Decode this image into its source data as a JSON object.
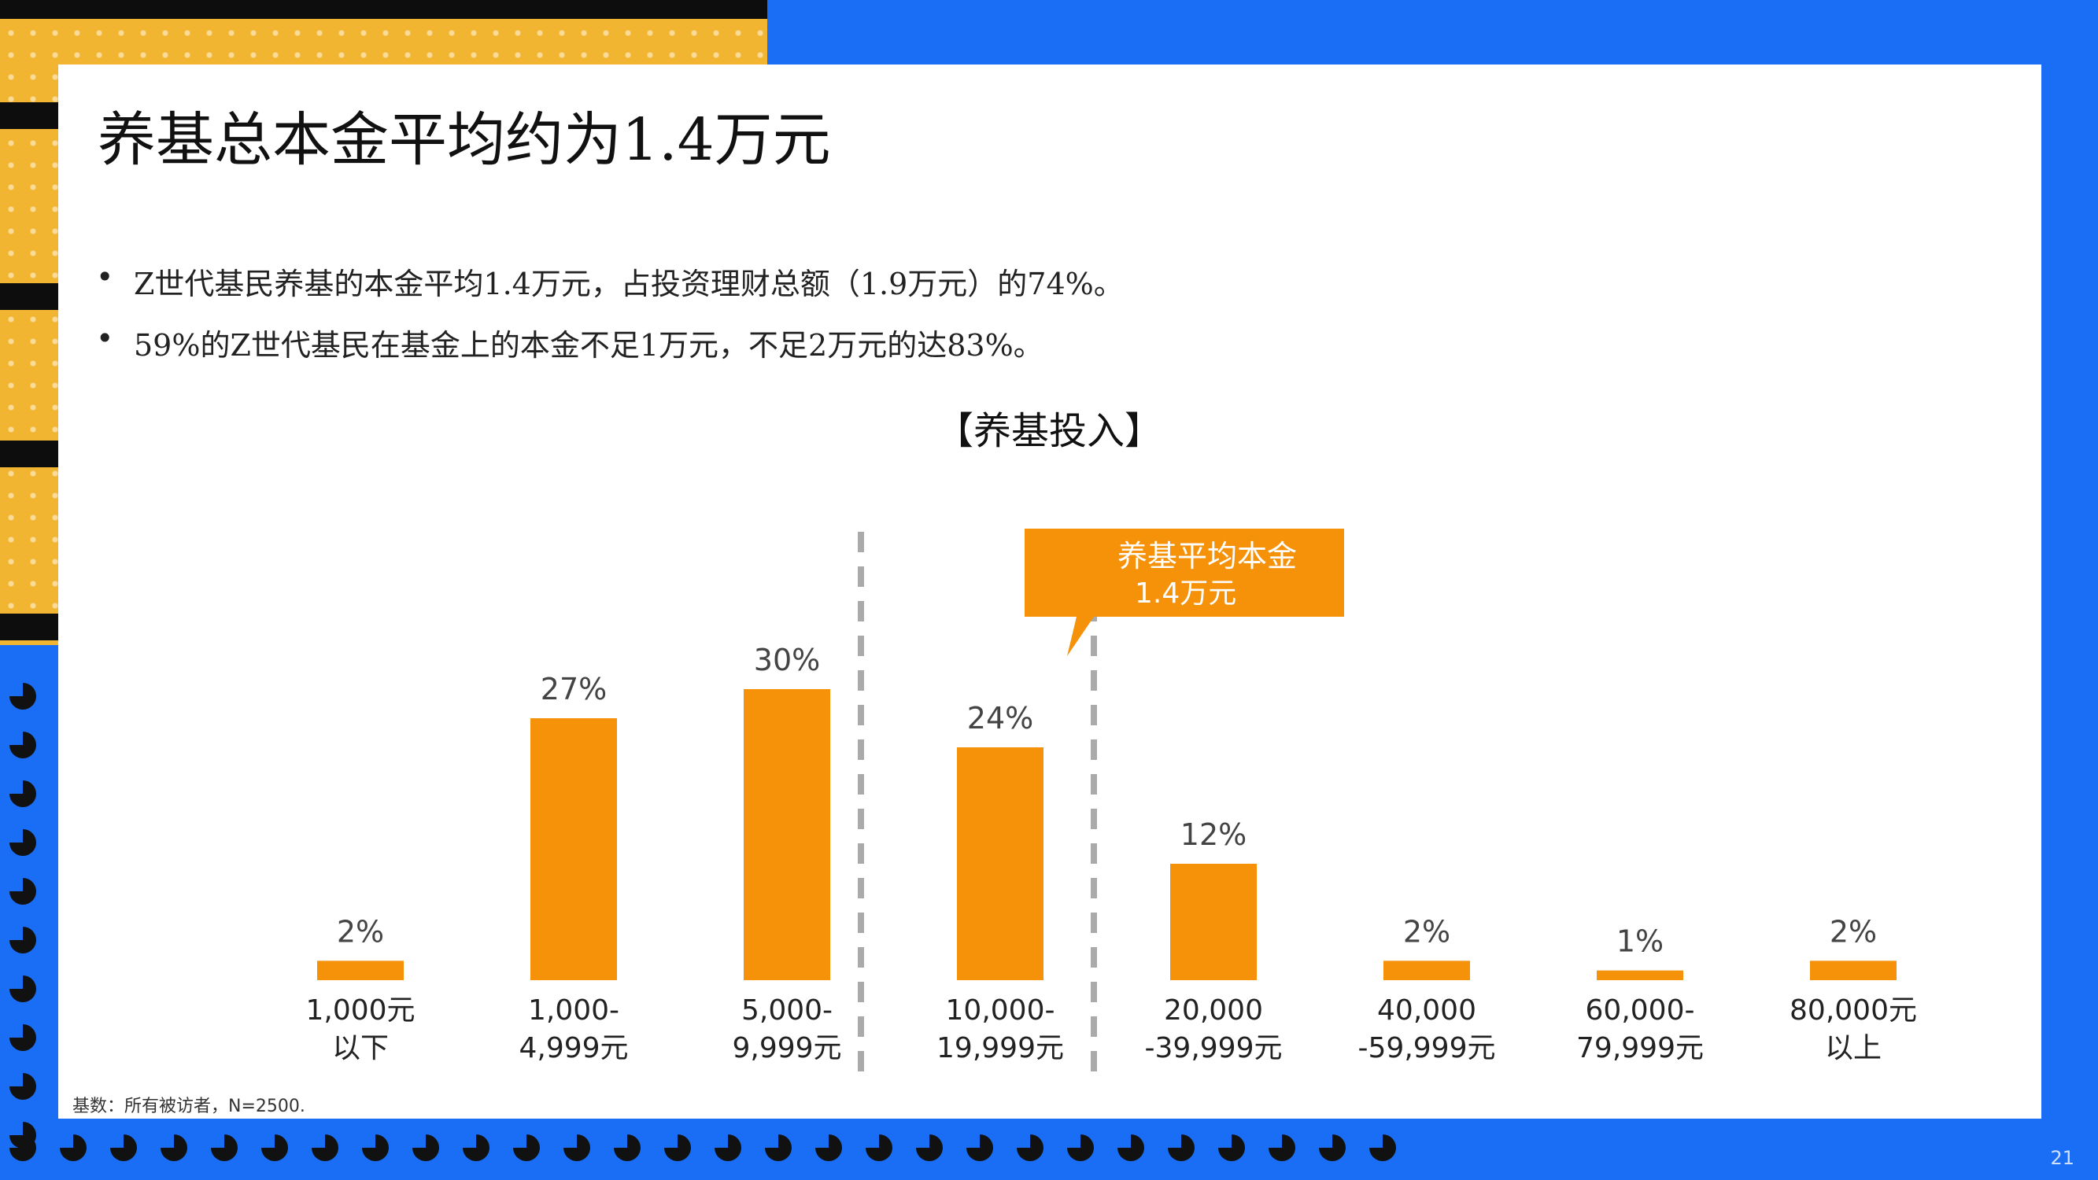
{
  "slide": {
    "title": "养基总本金平均约为1.4万元",
    "bullets": [
      "Z世代基民养基的本金平均1.4万元，占投资理财总额（1.9万元）的74%。",
      "59%的Z世代基民在基金上的本金不足1万元，不足2万元的达83%。"
    ],
    "basis_note": "基数：所有被访者，N=2500.",
    "page_number": "21"
  },
  "colors": {
    "bar": "#f5920a",
    "callout": "#f5920a",
    "background_blue": "#1a6ef5",
    "accent_yellow": "#f2b531",
    "divider_gray": "#aaaaaa"
  },
  "chart_data": {
    "type": "bar",
    "title": "【养基投入】",
    "categories": [
      [
        "1,000元",
        "以下"
      ],
      [
        "1,000-",
        "4,999元"
      ],
      [
        "5,000-",
        "9,999元"
      ],
      [
        "10,000-",
        "19,999元"
      ],
      [
        "20,000",
        "-39,999元"
      ],
      [
        "40,000",
        "-59,999元"
      ],
      [
        "60,000-",
        "79,999元"
      ],
      [
        "80,000元",
        "以上"
      ]
    ],
    "values": [
      2,
      27,
      30,
      24,
      12,
      2,
      1,
      2
    ],
    "value_labels": [
      "2%",
      "27%",
      "30%",
      "24%",
      "12%",
      "2%",
      "1%",
      "2%"
    ],
    "ylim": [
      0,
      30
    ],
    "annotation": {
      "text": [
        "养基平均本金",
        "1.4万元"
      ]
    }
  }
}
